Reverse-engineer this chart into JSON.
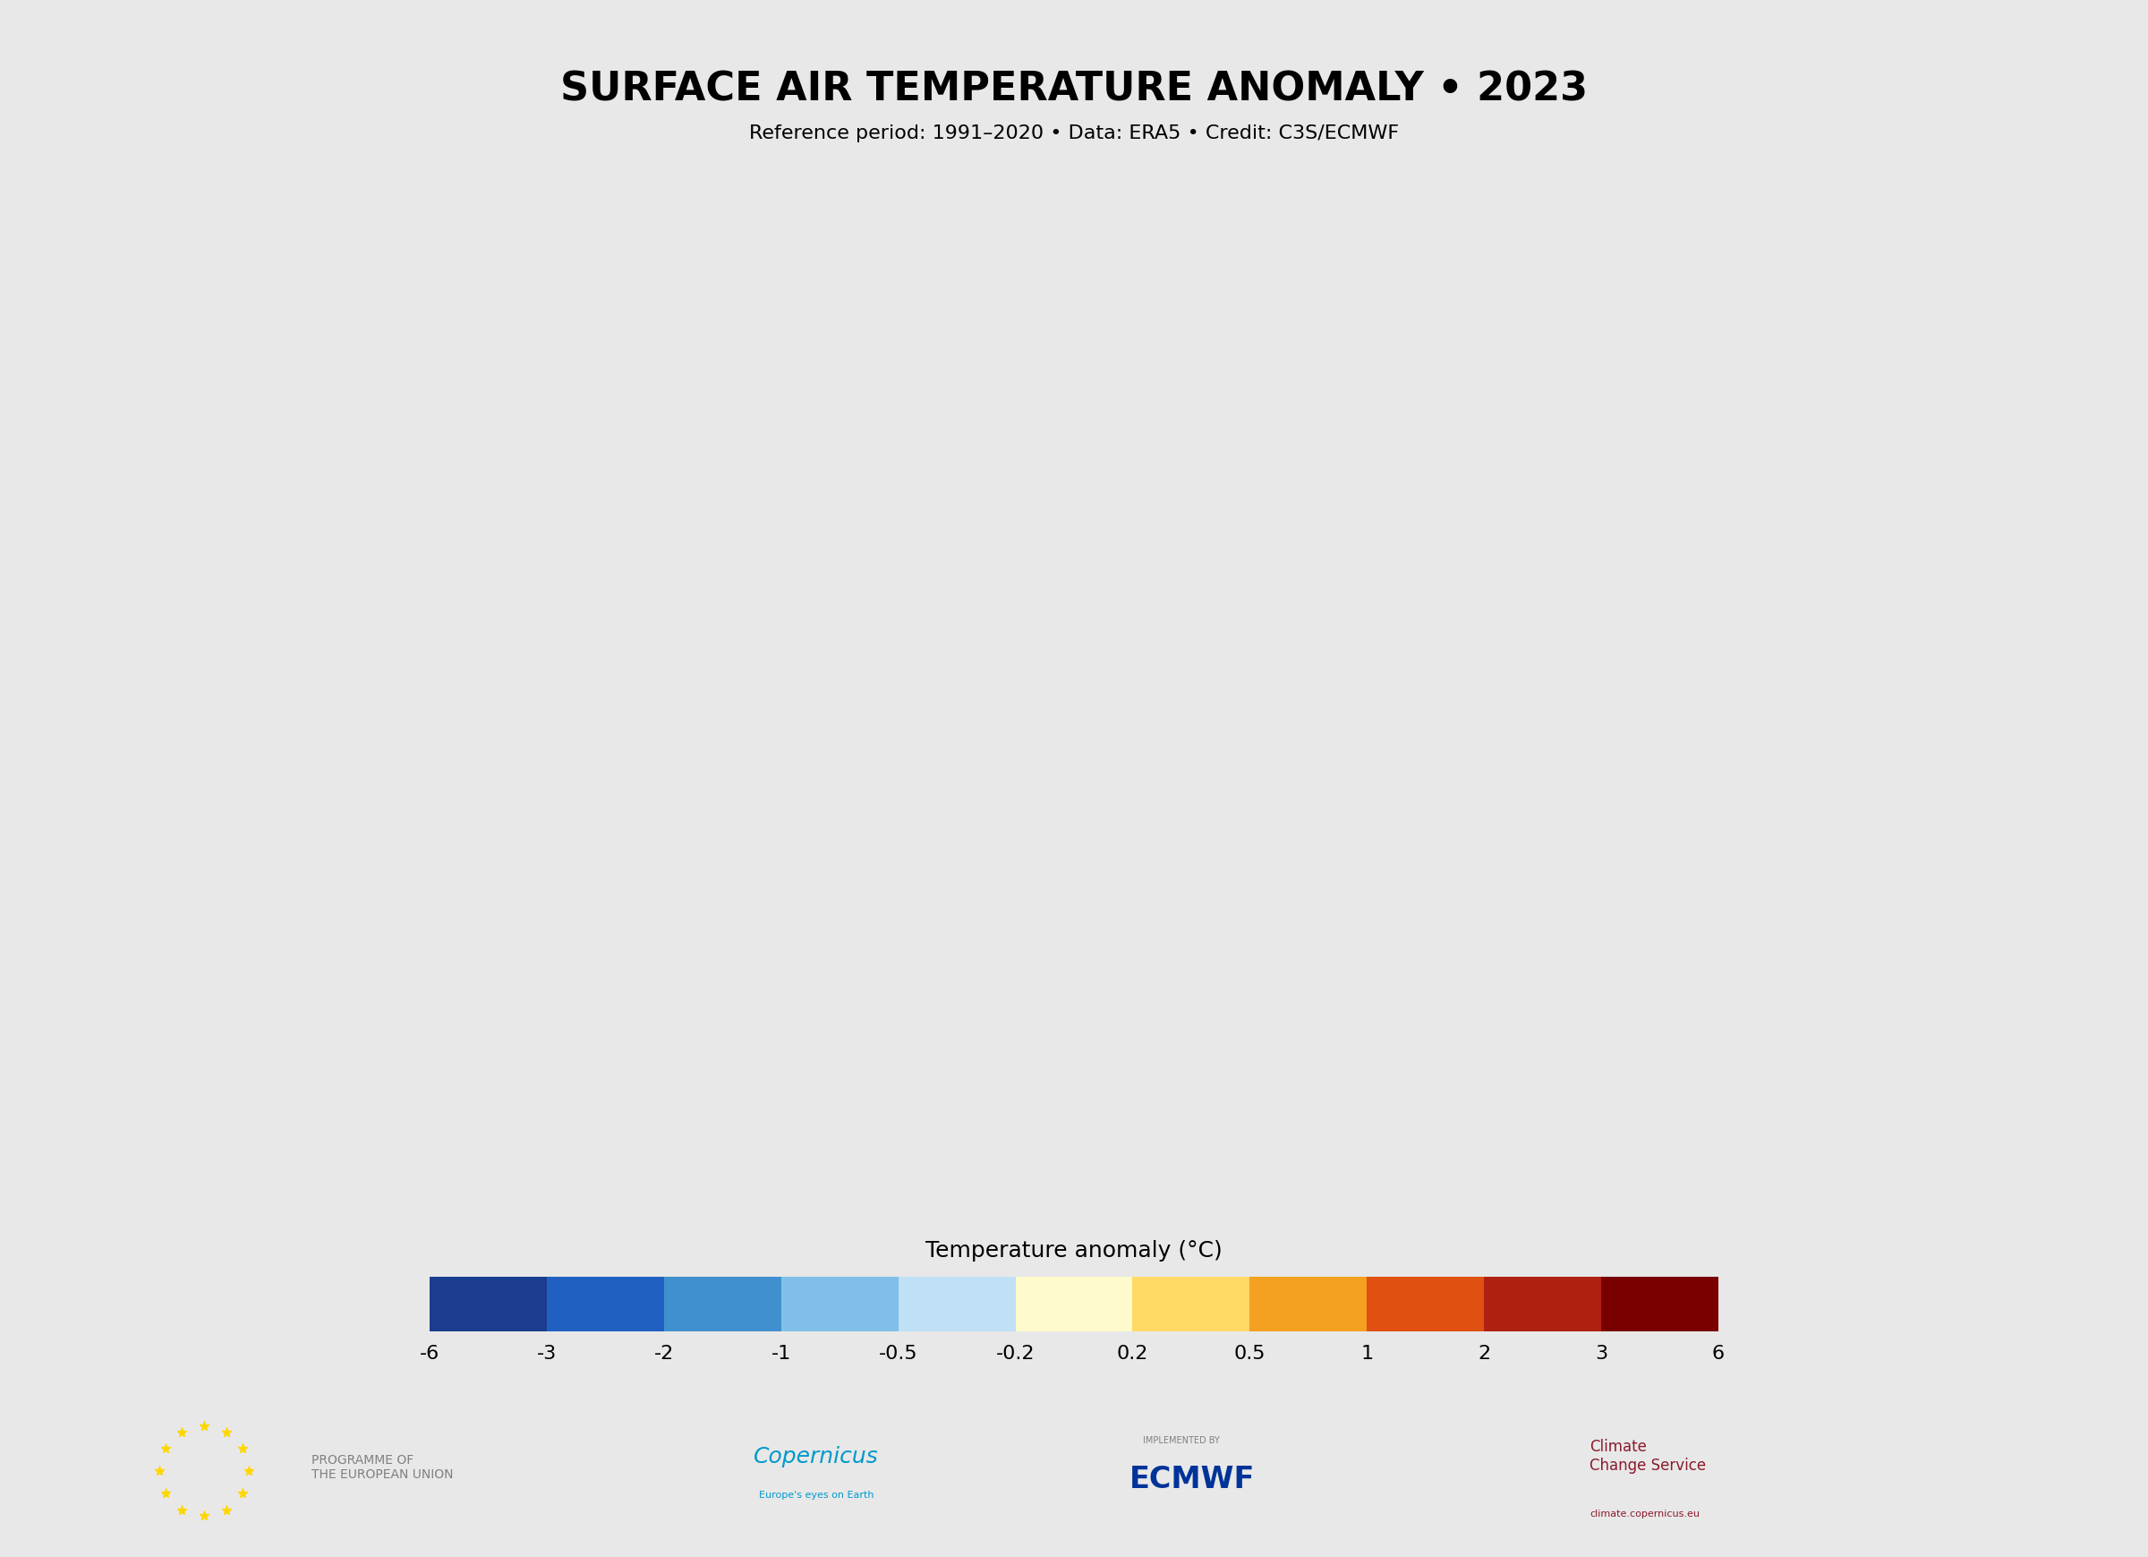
{
  "title": "SURFACE AIR TEMPERATURE ANOMALY • 2023",
  "subtitle": "Reference period: 1991–2020 • Data: ERA5 • Credit: C3S/ECMWF",
  "colorbar_label": "Temperature anomaly (°C)",
  "colorbar_ticks": [
    -6,
    -3,
    -2,
    -1,
    -0.5,
    -0.2,
    0.2,
    0.5,
    1,
    2,
    3,
    6
  ],
  "colorbar_tick_labels": [
    "-6",
    "-3",
    "-2",
    "-1",
    "-0.5",
    "-0.2",
    "0.2",
    "0.5",
    "1",
    "2",
    "3",
    "6"
  ],
  "color_levels": [
    -6,
    -3,
    -2,
    -1,
    -0.5,
    -0.2,
    0.2,
    0.5,
    1,
    2,
    3,
    6
  ],
  "colors": [
    "#1a3d8f",
    "#2060c0",
    "#4090d0",
    "#80c0e8",
    "#c0e0f5",
    "#ffffff",
    "#fffacc",
    "#ffd966",
    "#f4a020",
    "#e05010",
    "#b02010",
    "#7a0000"
  ],
  "background_color": "#e8e8e8",
  "map_background": "#f0f0f0",
  "title_fontsize": 32,
  "subtitle_fontsize": 16,
  "colorbar_label_fontsize": 18,
  "colorbar_tick_fontsize": 16,
  "fig_width": 24.0,
  "fig_height": 17.4,
  "eu_flag_color": "#003399",
  "eu_text": "PROGRAMME OF\nTHE EUROPEAN UNION",
  "copernicus_color": "#0099cc",
  "ecmwf_color": "#003399",
  "ccs_color": "#8b1a2a"
}
